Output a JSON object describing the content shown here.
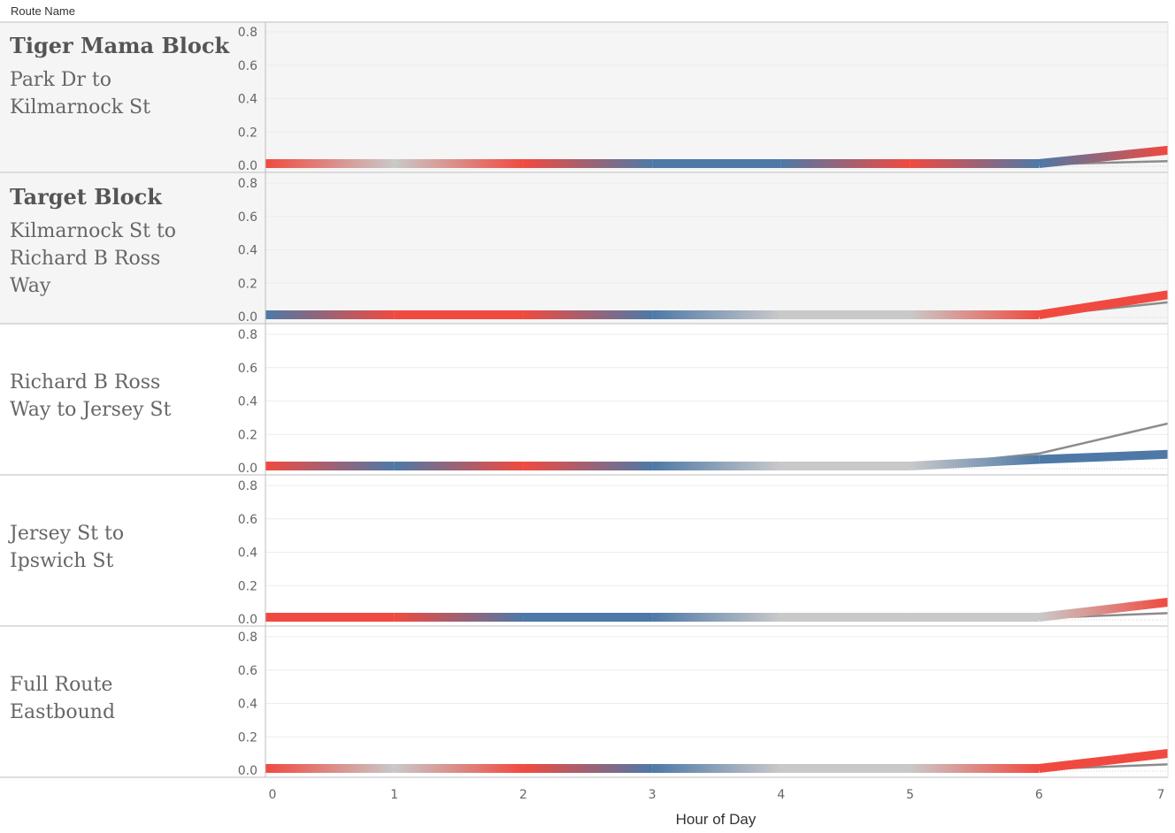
{
  "header": {
    "column_label": "Route Name"
  },
  "chart_data": {
    "type": "line",
    "xlabel": "Hour of Day",
    "x": [
      0,
      1,
      2,
      3,
      4,
      5,
      6,
      7
    ],
    "xlim": [
      0,
      7
    ],
    "ylim": [
      0,
      0.8
    ],
    "yticks": [
      0.0,
      0.2,
      0.4,
      0.6,
      0.8
    ],
    "grid": true,
    "colors": {
      "red": "#f04a40",
      "blue": "#4e79a7",
      "gray": "#c9c9c9",
      "dark": "#8c8c8c"
    },
    "rows": [
      {
        "title": "Tiger Mama Block",
        "subtitle": [
          "Park Dr to",
          "Kilmarnock St"
        ],
        "shaded": true,
        "band": [
          0.0,
          0.0,
          0.0,
          0.0,
          0.0,
          0.0,
          0.0,
          0.08
        ],
        "band_colors": [
          "red",
          "gray",
          "red",
          "blue",
          "blue",
          "red",
          "blue",
          "red"
        ],
        "thin": [
          0.0,
          0.0,
          0.0,
          0.0,
          0.0,
          0.0,
          0.0,
          0.02
        ]
      },
      {
        "title": "Target Block",
        "subtitle": [
          "Kilmarnock St to",
          "Richard B Ross",
          "Way"
        ],
        "shaded": true,
        "band": [
          0.0,
          0.0,
          0.0,
          0.0,
          0.0,
          0.0,
          0.0,
          0.12
        ],
        "band_colors": [
          "blue",
          "red",
          "red",
          "blue",
          "gray",
          "gray",
          "red",
          "red"
        ],
        "thin": [
          0.0,
          0.0,
          0.0,
          0.0,
          0.0,
          0.0,
          0.0,
          0.08
        ]
      },
      {
        "title": "",
        "subtitle": [
          "Richard B Ross",
          "Way to Jersey St"
        ],
        "shaded": false,
        "band": [
          0.0,
          0.0,
          0.0,
          0.0,
          0.0,
          0.0,
          0.04,
          0.07
        ],
        "band_colors": [
          "red",
          "blue",
          "red",
          "blue",
          "gray",
          "gray",
          "blue",
          "blue"
        ],
        "thin": [
          0.0,
          0.0,
          0.0,
          0.0,
          0.0,
          0.0,
          0.08,
          0.26
        ]
      },
      {
        "title": "",
        "subtitle": [
          "Jersey St to",
          "Ipswich St"
        ],
        "shaded": false,
        "band": [
          0.0,
          0.0,
          0.0,
          0.0,
          0.0,
          0.0,
          0.0,
          0.09
        ],
        "band_colors": [
          "red",
          "red",
          "blue",
          "blue",
          "gray",
          "gray",
          "gray",
          "red"
        ],
        "thin": [
          0.0,
          0.0,
          0.02,
          0.0,
          0.0,
          0.0,
          0.0,
          0.03
        ]
      },
      {
        "title": "",
        "subtitle": [
          "Full Route",
          "Eastbound"
        ],
        "shaded": false,
        "band": [
          0.0,
          0.0,
          0.0,
          0.0,
          0.0,
          0.0,
          0.0,
          0.09
        ],
        "band_colors": [
          "red",
          "gray",
          "red",
          "blue",
          "gray",
          "gray",
          "red",
          "red"
        ],
        "thin": [
          0.0,
          0.0,
          0.0,
          0.0,
          0.0,
          0.0,
          0.0,
          0.03
        ]
      }
    ]
  }
}
